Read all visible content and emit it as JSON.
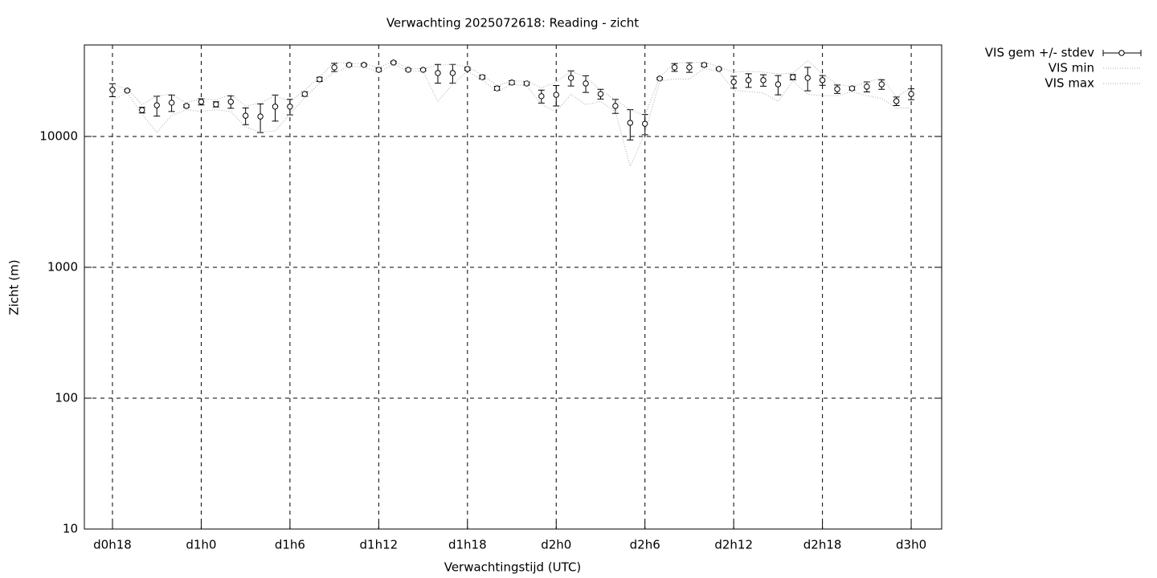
{
  "chart_data": {
    "type": "errorbar-line",
    "title": "Verwachting 2025072618: Reading - zicht",
    "x_label": "Verwachtingstijd (UTC)",
    "y_label": "Zicht (m)",
    "x": [
      18,
      19,
      20,
      21,
      22,
      23,
      24,
      25,
      26,
      27,
      28,
      29,
      30,
      31,
      32,
      33,
      34,
      35,
      36,
      37,
      38,
      39,
      40,
      41,
      42,
      43,
      44,
      45,
      46,
      47,
      48,
      49,
      50,
      51,
      52,
      53,
      54,
      55,
      56,
      57,
      58,
      59,
      60,
      61,
      62,
      63,
      64,
      65,
      66,
      67,
      68,
      69,
      70,
      71,
      72
    ],
    "xlim": [
      16.1,
      74.06
    ],
    "xticks": [
      {
        "value": 18,
        "label": "d0h18"
      },
      {
        "value": 24,
        "label": "d1h0"
      },
      {
        "value": 30,
        "label": "d1h6"
      },
      {
        "value": 36,
        "label": "d1h12"
      },
      {
        "value": 42,
        "label": "d1h18"
      },
      {
        "value": 48,
        "label": "d2h0"
      },
      {
        "value": 54,
        "label": "d2h6"
      },
      {
        "value": 60,
        "label": "d2h12"
      },
      {
        "value": 66,
        "label": "d2h18"
      },
      {
        "value": 72,
        "label": "d3h0"
      }
    ],
    "ylim": [
      10,
      50000
    ],
    "yticks": [
      10,
      100,
      1000,
      10000
    ],
    "log_y": true,
    "grid": true,
    "legend": "outside-top-right",
    "series": [
      {
        "name": "VIS gem +/- stdev",
        "color": "#000000",
        "style": "errorbar",
        "values": [
          22700,
          22400,
          15900,
          17300,
          18100,
          17100,
          18400,
          17600,
          18400,
          14400,
          14200,
          16900,
          16900,
          21100,
          27300,
          33700,
          35200,
          35200,
          32300,
          36700,
          32300,
          32300,
          30500,
          30500,
          32800,
          28400,
          23300,
          25800,
          25400,
          20300,
          20800,
          28000,
          25400,
          21100,
          17100,
          12700,
          12500,
          27700,
          33700,
          33700,
          35200,
          32800,
          26100,
          26900,
          26900,
          25000,
          28400,
          28000,
          26900,
          23000,
          23300,
          24000,
          25000,
          18600,
          21100
        ],
        "errors": [
          2600,
          400,
          800,
          3000,
          2600,
          400,
          1000,
          800,
          2000,
          2100,
          3500,
          3800,
          2300,
          800,
          1000,
          2400,
          600,
          600,
          1000,
          700,
          600,
          600,
          5000,
          5000,
          800,
          900,
          800,
          800,
          700,
          2300,
          3700,
          3700,
          3700,
          1800,
          2100,
          3300,
          2200,
          500,
          2300,
          2800,
          1000,
          500,
          2700,
          3200,
          2700,
          4200,
          1300,
          5700,
          2300,
          1700,
          700,
          2100,
          2100,
          1400,
          2000
        ]
      },
      {
        "name": "VIS min",
        "color": "#aaaaaa",
        "style": "dotted",
        "values": [
          19000,
          21500,
          14800,
          10700,
          14500,
          16000,
          15500,
          16000,
          15500,
          11800,
          10800,
          11000,
          14800,
          19800,
          25500,
          31000,
          34000,
          34000,
          31000,
          35500,
          31500,
          31500,
          18500,
          25000,
          31500,
          27000,
          22000,
          25000,
          24500,
          17500,
          15500,
          21000,
          17500,
          18500,
          15500,
          5900,
          10500,
          26500,
          27500,
          27500,
          33000,
          31500,
          22500,
          22000,
          21500,
          18500,
          26500,
          21000,
          20500,
          20500,
          22000,
          20500,
          19500,
          16500,
          16500
        ]
      },
      {
        "name": "VIS max",
        "color": "#aaaaaa",
        "style": "dotted",
        "values": [
          25000,
          23000,
          17500,
          20500,
          21000,
          18000,
          19500,
          19000,
          21000,
          17000,
          18000,
          20500,
          18500,
          22500,
          28500,
          37000,
          36000,
          36000,
          33500,
          37500,
          33000,
          33000,
          35000,
          35500,
          34000,
          29500,
          24500,
          26500,
          26500,
          23500,
          26000,
          31500,
          28500,
          22500,
          19000,
          16000,
          14500,
          28500,
          36500,
          36500,
          37000,
          34000,
          31000,
          31500,
          31000,
          30000,
          30500,
          38000,
          30000,
          25000,
          24000,
          26000,
          28000,
          20000,
          23500
        ]
      }
    ]
  }
}
